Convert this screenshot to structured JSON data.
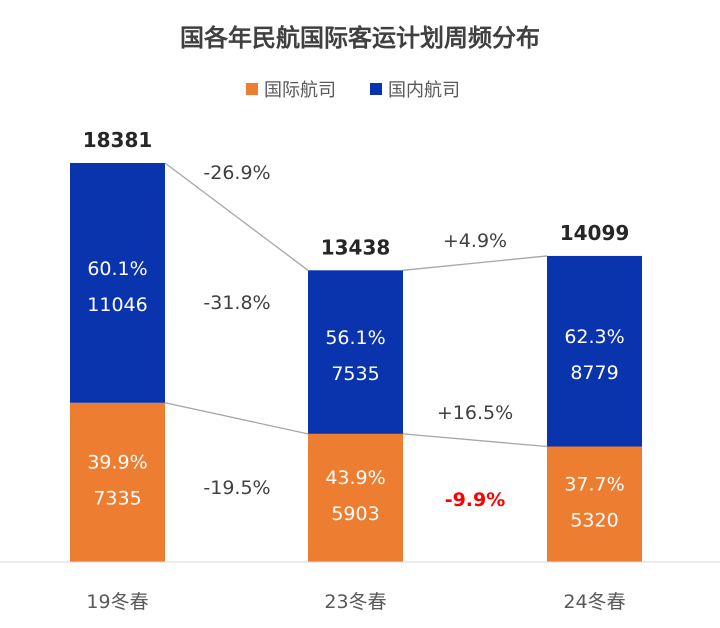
{
  "chart_data": {
    "type": "bar",
    "stacked": true,
    "title": "国各年民航国际客运计划周频分布",
    "categories": [
      "19冬春",
      "23冬春",
      "24冬春"
    ],
    "series": [
      {
        "name": "国际航司",
        "color": "#ED7D31",
        "values": [
          7335,
          5903,
          5320
        ],
        "shares": [
          "39.9%",
          "43.9%",
          "37.7%"
        ]
      },
      {
        "name": "国内航司",
        "color": "#0A33AE",
        "values": [
          11046,
          7535,
          8779
        ],
        "shares": [
          "60.1%",
          "56.1%",
          "62.3%"
        ]
      }
    ],
    "totals": [
      18381,
      13438,
      14099
    ],
    "changes": {
      "total": [
        "-26.9%",
        "+4.9%"
      ],
      "domestic": [
        "-31.8%",
        "+16.5%"
      ],
      "international": [
        "-19.5%",
        "-9.9%"
      ]
    },
    "highlight_color": "#FF0000",
    "legend_position": "top",
    "grid": false,
    "ylim": [
      0,
      18381
    ]
  }
}
